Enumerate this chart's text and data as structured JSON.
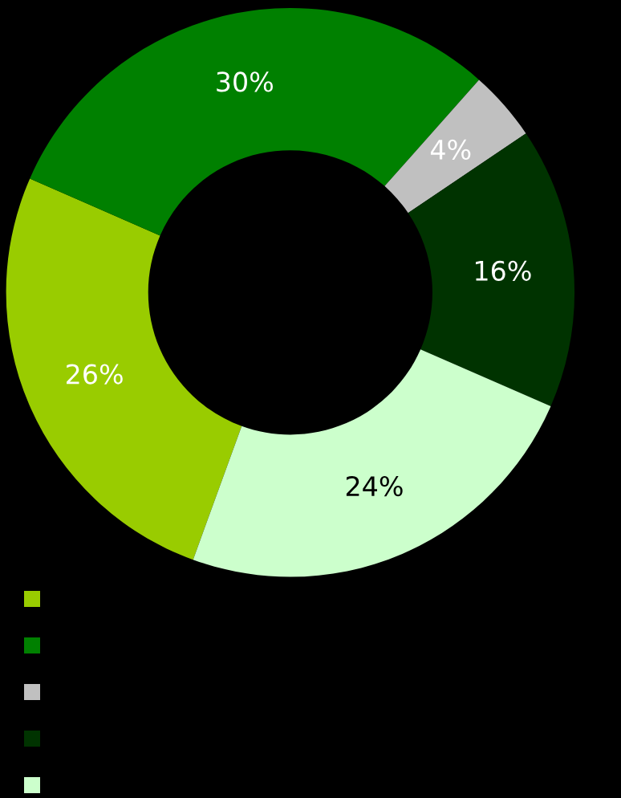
{
  "chart_data": {
    "type": "donut",
    "categories": [
      null,
      null,
      null,
      null,
      null
    ],
    "values": [
      26,
      30,
      4,
      16,
      24
    ],
    "colors": [
      "#99cc00",
      "#008000",
      "#c0c0c0",
      "#003300",
      "#ccffcc"
    ],
    "value_labels": [
      "26%",
      "30%",
      "4%",
      "16%",
      "24%"
    ]
  }
}
